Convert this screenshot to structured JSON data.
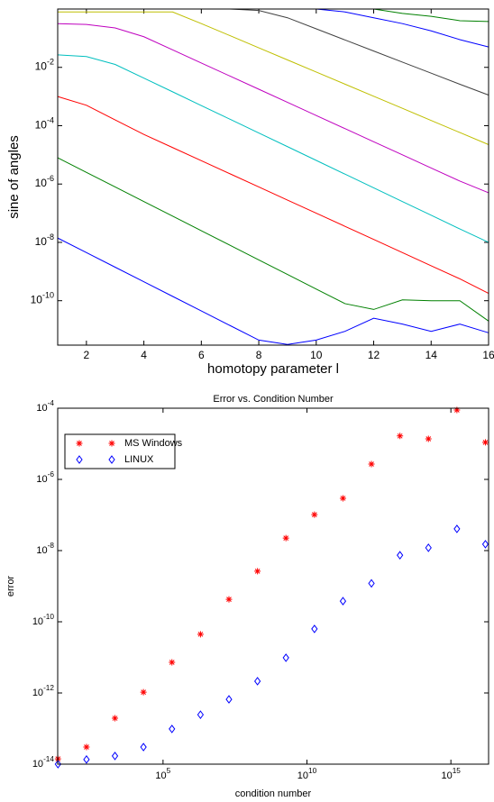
{
  "chart_data": [
    {
      "type": "line",
      "xlabel": "homotopy parameter l",
      "ylabel": "sine of angles",
      "yscale": "log",
      "x": [
        1,
        2,
        3,
        4,
        5,
        6,
        7,
        8,
        9,
        10,
        11,
        12,
        13,
        14,
        15,
        16
      ],
      "xlim": [
        1,
        16
      ],
      "xticks": [
        2,
        4,
        6,
        8,
        10,
        12,
        14,
        16
      ],
      "ylim": [
        3e-12,
        1
      ],
      "yticks": [
        {
          "value": 0.01,
          "label": "10^-2"
        },
        {
          "value": 0.0001,
          "label": "10^-4"
        },
        {
          "value": 1e-06,
          "label": "10^-6"
        },
        {
          "value": 1e-08,
          "label": "10^-8"
        },
        {
          "value": 1e-10,
          "label": "10^-10"
        }
      ],
      "series": [
        {
          "color": "#0000ff",
          "values": [
            1.41e-08,
            4.47e-09,
            1.41e-09,
            4.47e-10,
            1.41e-10,
            4.47e-11,
            1.41e-11,
            4.47e-12,
            3.16e-12,
            4.47e-12,
            8.91e-12,
            2.51e-11,
            1.58e-11,
            8.91e-12,
            1.58e-11,
            7.94e-12
          ]
        },
        {
          "color": "#008000",
          "values": [
            7.94e-06,
            2.51e-06,
            7.94e-07,
            2.51e-07,
            7.94e-08,
            2.51e-08,
            7.94e-09,
            2.51e-09,
            7.94e-10,
            2.51e-10,
            7.94e-11,
            5.01e-11,
            1.07e-10,
            1e-10,
            1e-10,
            2e-11
          ]
        },
        {
          "color": "#ff0000",
          "values": [
            0.001,
            0.000501,
            0.000158,
            5.01e-05,
            1.78e-05,
            6.31e-06,
            2.24e-06,
            7.94e-07,
            2.82e-07,
            1e-07,
            3.55e-08,
            1.26e-08,
            4.47e-09,
            1.58e-09,
            5.62e-10,
            1.78e-10
          ]
        },
        {
          "color": "#00bfbf",
          "values": [
            0.0269,
            0.0234,
            0.0126,
            0.00427,
            0.00145,
            0.00049,
            0.000166,
            5.62e-05,
            1.91e-05,
            6.46e-06,
            2.19e-06,
            7.41e-07,
            2.51e-07,
            8.51e-08,
            2.88e-08,
            1e-08
          ]
        },
        {
          "color": "#bf00bf",
          "values": [
            0.316,
            0.295,
            0.224,
            0.112,
            0.0398,
            0.0141,
            0.00501,
            0.00178,
            0.000631,
            0.000224,
            7.94e-05,
            2.82e-05,
            1e-05,
            3.55e-06,
            1.26e-06,
            5.01e-07
          ]
        },
        {
          "color": "#bfbf00",
          "values": [
            0.794,
            0.794,
            0.794,
            0.794,
            0.794,
            0.316,
            0.122,
            0.0468,
            0.018,
            0.00692,
            0.00266,
            0.00102,
            0.000394,
            0.000151,
            5.82e-05,
            2.24e-05
          ]
        },
        {
          "color": "#404040",
          "values": [
            1,
            1,
            1,
            1,
            1,
            1,
            1,
            0.891,
            0.501,
            0.209,
            0.0871,
            0.0363,
            0.0151,
            0.00631,
            0.00263,
            0.00112
          ]
        },
        {
          "color": "#0000ff",
          "values": [
            1,
            1,
            1,
            1,
            1,
            1,
            1,
            1,
            1,
            1,
            0.794,
            0.501,
            0.316,
            0.178,
            0.0891,
            0.0501
          ]
        },
        {
          "color": "#008000",
          "values": [
            1,
            1,
            1,
            1,
            1,
            1,
            1,
            1,
            1,
            1,
            1,
            1,
            0.708,
            0.56,
            0.398,
            0.372
          ]
        },
        {
          "color": "#ff0000",
          "values": [
            1,
            1,
            1,
            1,
            1,
            1,
            1,
            1,
            1,
            1,
            1,
            1,
            1,
            1,
            1,
            1
          ]
        }
      ]
    },
    {
      "type": "scatter",
      "title": "Error vs. Condition Number",
      "xlabel": "condition number",
      "ylabel": "error",
      "xscale": "log",
      "yscale": "log",
      "legend": "upper left",
      "x": [
        22.4,
        219,
        2138,
        20900.0,
        204000.0,
        2000000.0,
        19500000.0,
        191000000.0,
        1860000000.0,
        18200000000.0,
        178000000000.0,
        1740000000000.0,
        17000000000000.0,
        166000000000000.0,
        1620000000000000.0,
        1.58e+16
      ],
      "xlim": [
        21.9,
        2.04e+16
      ],
      "xticks": [
        {
          "value": 100000.0,
          "label": "10^5"
        },
        {
          "value": 10000000000.0,
          "label": "10^10"
        },
        {
          "value": 1000000000000000.0,
          "label": "10^15"
        }
      ],
      "ylim": [
        1e-14,
        0.0001
      ],
      "yticks": [
        {
          "value": 0.0001,
          "label": "10^-4"
        },
        {
          "value": 1e-06,
          "label": "10^-6"
        },
        {
          "value": 1e-08,
          "label": "10^-8"
        },
        {
          "value": 1e-10,
          "label": "10^-10"
        },
        {
          "value": 1e-12,
          "label": "10^-12"
        },
        {
          "value": 1e-14,
          "label": "10^-14"
        }
      ],
      "series": [
        {
          "name": "MS Windows",
          "color": "#ff0000",
          "marker": "star",
          "values": [
            1.41e-14,
            3.02e-14,
            1.95e-13,
            1.05e-12,
            7.24e-12,
            4.47e-11,
            4.27e-10,
            2.63e-09,
            2.24e-08,
            1.02e-07,
            2.95e-07,
            2.69e-06,
            1.66e-05,
            1.38e-05,
            8.91e-05,
            1.1e-05
          ]
        },
        {
          "name": "LINUX",
          "color": "#0000ff",
          "marker": "diamond",
          "values": [
            1e-14,
            1.35e-14,
            1.7e-14,
            3.02e-14,
            9.77e-14,
            2.45e-13,
            6.61e-13,
            2.14e-12,
            9.77e-12,
            6.31e-11,
            3.8e-10,
            1.2e-09,
            7.41e-09,
            1.2e-08,
            4.07e-08,
            1.51e-08
          ]
        }
      ]
    }
  ]
}
